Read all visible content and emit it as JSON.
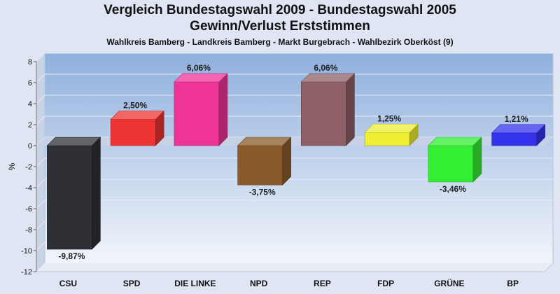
{
  "colors": {
    "background": "#dfe5f2",
    "plot_top": "#8fb0dd",
    "plot_bottom": "#f2f5fb",
    "axis_text": "#111111"
  },
  "chart_data": {
    "type": "bar",
    "title": "Vergleich Bundestagswahl 2009 - Bundestagswahl 2005",
    "title2": "Gewinn/Verlust Erststimmen",
    "subtitle": "Wahlkreis Bamberg - Landkreis Bamberg - Markt Burgebrach - Wahlbezirk Oberköst (9)",
    "ylabel": "%",
    "ylim": [
      -12,
      8
    ],
    "yticks": [
      "-12",
      "-10",
      "-8",
      "-6",
      "-4",
      "-2",
      "0",
      "2",
      "4",
      "6",
      "8"
    ],
    "grid": true,
    "categories": [
      "CSU",
      "SPD",
      "DIE LINKE",
      "NPD",
      "REP",
      "FDP",
      "GRÜNE",
      "BP"
    ],
    "values": [
      -9.87,
      2.5,
      6.06,
      -3.75,
      6.06,
      1.25,
      -3.46,
      1.21
    ],
    "labels": [
      "-9,87%",
      "2,50%",
      "6,06%",
      "-3,75%",
      "6,06%",
      "1,25%",
      "-3,46%",
      "1,21%"
    ],
    "bar_colors": [
      "#2e3036",
      "#ee3333",
      "#ee3399",
      "#8b5a2b",
      "#8e5f66",
      "#eeee33",
      "#33ee33",
      "#3333ee"
    ]
  }
}
